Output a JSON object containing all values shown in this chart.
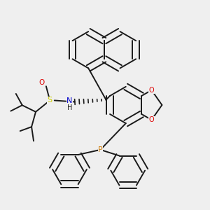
{
  "bg_color": "#efefef",
  "line_color": "#1a1a1a",
  "bond_width": 1.4,
  "atom_colors": {
    "N": "#0000cc",
    "S": "#cccc00",
    "O": "#dd0000",
    "P": "#cc7700",
    "H": "#1a1a1a"
  },
  "ring_r": 0.082,
  "fig_w": 3.0,
  "fig_h": 3.0
}
